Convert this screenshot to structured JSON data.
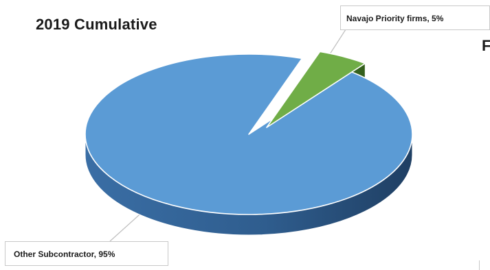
{
  "chart_data": {
    "type": "pie",
    "title": "2019 Cumulative",
    "categories": [
      "Other Subcontractor",
      "Navajo Priority firms"
    ],
    "values": [
      95,
      5
    ],
    "data_labels": [
      "Other Subcontractor, 95%",
      "Navajo Priority firms, 5%"
    ],
    "three_d": true,
    "exploded_slice": "Navajo Priority firms",
    "colors": {
      "Other Subcontractor": "#5b9bd5",
      "Navajo Priority firms": "#70ad47"
    }
  },
  "cut_off_text": "F"
}
